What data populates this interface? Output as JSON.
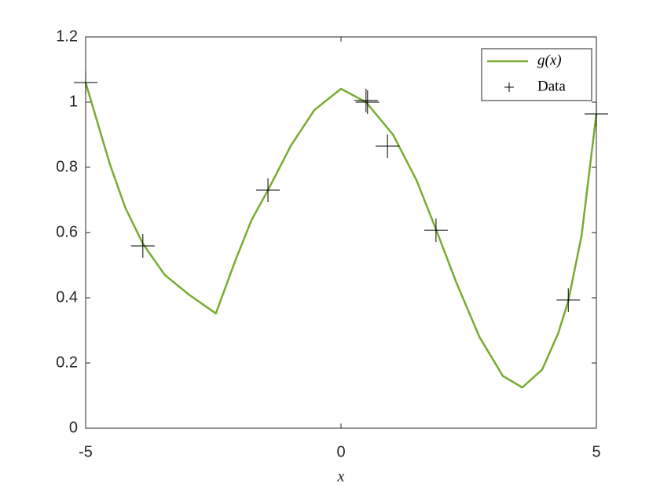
{
  "chart_data": {
    "type": "line",
    "xlabel": "x",
    "xlim": [
      -5,
      5
    ],
    "xticks": [
      -5,
      0,
      5
    ],
    "ylim": [
      0,
      1.2
    ],
    "yticks": [
      0,
      0.2,
      0.4,
      0.6,
      0.8,
      1,
      1.2
    ],
    "legend": "top-right",
    "series": [
      {
        "name": "g(x)",
        "type": "line",
        "color": "#77ac30",
        "x": [
          -5,
          -4.75,
          -4.52,
          -4.22,
          -3.88,
          -3.45,
          -2.98,
          -2.45,
          -2.06,
          -1.75,
          -1.43,
          -0.98,
          -0.52,
          0,
          0.49,
          1.02,
          1.48,
          1.86,
          2.25,
          2.71,
          3.17,
          3.55,
          3.94,
          4.25,
          4.45,
          4.71,
          5
        ],
        "values": [
          1.06,
          0.928,
          0.807,
          0.675,
          0.566,
          0.47,
          0.41,
          0.352,
          0.518,
          0.639,
          0.73,
          0.867,
          0.976,
          1.041,
          1.0,
          0.9,
          0.76,
          0.61,
          0.45,
          0.28,
          0.16,
          0.125,
          0.18,
          0.29,
          0.39,
          0.59,
          0.964
        ]
      },
      {
        "name": "Data",
        "type": "scatter",
        "color": "#000000",
        "x": [
          -5,
          -3.88,
          -1.43,
          0.49,
          0.52,
          0.91,
          1.86,
          4.45,
          5
        ],
        "values": [
          1.06,
          0.559,
          0.73,
          1.005,
          1.0,
          0.865,
          0.607,
          0.393,
          0.964
        ]
      }
    ]
  }
}
